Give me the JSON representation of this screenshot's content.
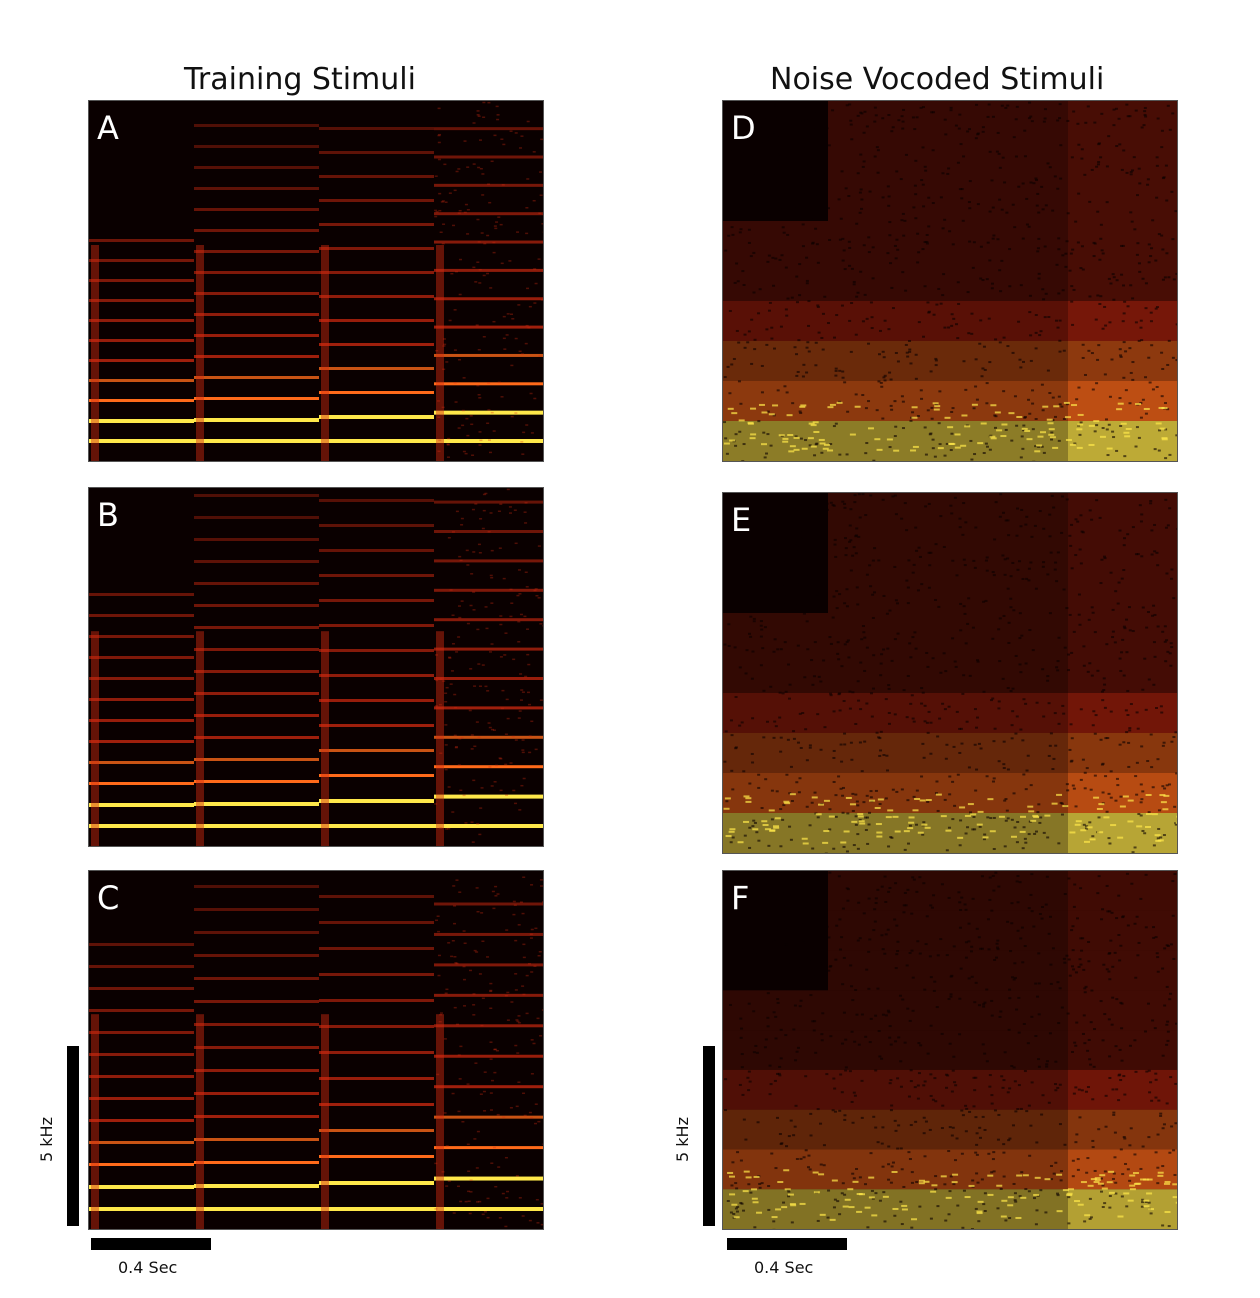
{
  "titles": {
    "left": "Training  Stimuli",
    "right": "Noise Vocoded Stimuli"
  },
  "panels": [
    {
      "letter": "A",
      "kind": "harmonic",
      "variant": 0
    },
    {
      "letter": "B",
      "kind": "harmonic",
      "variant": 1
    },
    {
      "letter": "C",
      "kind": "harmonic",
      "variant": 2
    },
    {
      "letter": "D",
      "kind": "noise",
      "variant": 0
    },
    {
      "letter": "E",
      "kind": "noise",
      "variant": 1
    },
    {
      "letter": "F",
      "kind": "noise",
      "variant": 2
    }
  ],
  "scale": {
    "freq_label": "5 kHz",
    "time_label": "0.4 Sec"
  },
  "colors": {
    "dark": "#0a0000",
    "red": "#d42a10",
    "orange": "#ff6a1a",
    "yellow": "#ffe84a"
  }
}
